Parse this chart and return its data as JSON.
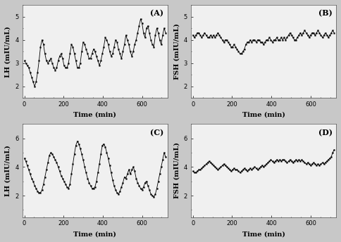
{
  "panels": [
    {
      "label": "(A)",
      "ylabel": "LH (mIU/mL)",
      "xlabel": "Time (min)",
      "ylim": [
        1.5,
        5.5
      ],
      "yticks": [
        2,
        3,
        4,
        5
      ],
      "xlim": [
        -10,
        730
      ],
      "xticks": [
        0,
        200,
        400,
        600
      ],
      "data_x": [
        0,
        7.5,
        15,
        22.5,
        30,
        37.5,
        45,
        52.5,
        60,
        67.5,
        75,
        82.5,
        90,
        97.5,
        105,
        112.5,
        120,
        127.5,
        135,
        142.5,
        150,
        157.5,
        165,
        172.5,
        180,
        187.5,
        195,
        202.5,
        210,
        217.5,
        225,
        232.5,
        240,
        247.5,
        255,
        262.5,
        270,
        277.5,
        285,
        292.5,
        300,
        307.5,
        315,
        322.5,
        330,
        337.5,
        345,
        352.5,
        360,
        367.5,
        375,
        382.5,
        390,
        397.5,
        405,
        412.5,
        420,
        427.5,
        435,
        442.5,
        450,
        457.5,
        465,
        472.5,
        480,
        487.5,
        495,
        502.5,
        510,
        517.5,
        525,
        532.5,
        540,
        547.5,
        555,
        562.5,
        570,
        577.5,
        585,
        592.5,
        600,
        607.5,
        615,
        622.5,
        630,
        637.5,
        645,
        652.5,
        660,
        667.5,
        675,
        682.5,
        690,
        697.5,
        705,
        712.5,
        720
      ],
      "data_y": [
        3.1,
        3.0,
        2.9,
        2.8,
        2.6,
        2.4,
        2.2,
        2.0,
        2.2,
        2.6,
        3.1,
        3.7,
        4.0,
        3.8,
        3.4,
        3.1,
        3.0,
        3.1,
        3.2,
        3.0,
        2.8,
        2.7,
        2.8,
        3.1,
        3.3,
        3.4,
        3.2,
        2.9,
        2.8,
        2.8,
        3.0,
        3.4,
        3.8,
        3.7,
        3.4,
        3.1,
        2.8,
        2.8,
        3.0,
        3.5,
        3.9,
        3.8,
        3.6,
        3.4,
        3.2,
        3.2,
        3.4,
        3.6,
        3.5,
        3.3,
        3.1,
        2.9,
        3.1,
        3.4,
        3.7,
        4.1,
        4.0,
        3.8,
        3.5,
        3.3,
        3.4,
        3.7,
        4.0,
        3.9,
        3.6,
        3.4,
        3.2,
        3.5,
        3.8,
        4.2,
        4.0,
        3.8,
        3.5,
        3.3,
        3.5,
        3.8,
        4.0,
        4.3,
        4.6,
        4.9,
        4.7,
        4.3,
        4.1,
        4.5,
        4.6,
        4.3,
        4.0,
        3.8,
        3.7,
        4.2,
        4.5,
        4.3,
        4.0,
        3.8,
        4.2,
        4.5,
        4.3
      ]
    },
    {
      "label": "(B)",
      "ylabel": "FSH (mIU/mL)",
      "xlabel": "Time (min)",
      "ylim": [
        1.5,
        5.5
      ],
      "yticks": [
        2,
        3,
        4,
        5
      ],
      "xlim": [
        -10,
        730
      ],
      "xticks": [
        0,
        200,
        400,
        600
      ],
      "data_x": [
        0,
        7.5,
        15,
        22.5,
        30,
        37.5,
        45,
        52.5,
        60,
        67.5,
        75,
        82.5,
        90,
        97.5,
        105,
        112.5,
        120,
        127.5,
        135,
        142.5,
        150,
        157.5,
        165,
        172.5,
        180,
        187.5,
        195,
        202.5,
        210,
        217.5,
        225,
        232.5,
        240,
        247.5,
        255,
        262.5,
        270,
        277.5,
        285,
        292.5,
        300,
        307.5,
        315,
        322.5,
        330,
        337.5,
        345,
        352.5,
        360,
        367.5,
        375,
        382.5,
        390,
        397.5,
        405,
        412.5,
        420,
        427.5,
        435,
        442.5,
        450,
        457.5,
        465,
        472.5,
        480,
        487.5,
        495,
        502.5,
        510,
        517.5,
        525,
        532.5,
        540,
        547.5,
        555,
        562.5,
        570,
        577.5,
        585,
        592.5,
        600,
        607.5,
        615,
        622.5,
        630,
        637.5,
        645,
        652.5,
        660,
        667.5,
        675,
        682.5,
        690,
        697.5,
        705,
        712.5,
        720
      ],
      "data_y": [
        4.2,
        4.1,
        4.2,
        4.3,
        4.3,
        4.2,
        4.1,
        4.2,
        4.3,
        4.2,
        4.1,
        4.1,
        4.2,
        4.1,
        4.2,
        4.1,
        4.2,
        4.3,
        4.2,
        4.1,
        4.0,
        3.9,
        4.0,
        4.0,
        3.9,
        3.8,
        3.7,
        3.7,
        3.8,
        3.7,
        3.6,
        3.5,
        3.4,
        3.4,
        3.5,
        3.6,
        3.8,
        3.9,
        3.9,
        4.0,
        3.9,
        4.0,
        4.0,
        3.9,
        4.0,
        4.0,
        3.9,
        3.9,
        3.8,
        3.9,
        4.0,
        4.0,
        4.1,
        4.0,
        3.9,
        4.0,
        4.0,
        4.1,
        4.0,
        4.0,
        4.1,
        4.0,
        4.1,
        4.0,
        4.1,
        4.2,
        4.3,
        4.2,
        4.1,
        4.0,
        4.0,
        4.1,
        4.2,
        4.3,
        4.2,
        4.3,
        4.4,
        4.3,
        4.2,
        4.1,
        4.2,
        4.3,
        4.3,
        4.2,
        4.3,
        4.4,
        4.3,
        4.2,
        4.1,
        4.2,
        4.3,
        4.2,
        4.1,
        4.2,
        4.3,
        4.4,
        4.3
      ]
    },
    {
      "label": "(C)",
      "ylabel": "LH (mIU/mL)",
      "xlabel": "Time (min)",
      "ylim": [
        0.5,
        7
      ],
      "yticks": [
        2,
        4,
        6
      ],
      "xlim": [
        -10,
        730
      ],
      "xticks": [
        0,
        200,
        400,
        600
      ],
      "data_x": [
        0,
        7.5,
        15,
        22.5,
        30,
        37.5,
        45,
        52.5,
        60,
        67.5,
        75,
        82.5,
        90,
        97.5,
        105,
        112.5,
        120,
        127.5,
        135,
        142.5,
        150,
        157.5,
        165,
        172.5,
        180,
        187.5,
        195,
        202.5,
        210,
        217.5,
        225,
        232.5,
        240,
        247.5,
        255,
        262.5,
        270,
        277.5,
        285,
        292.5,
        300,
        307.5,
        315,
        322.5,
        330,
        337.5,
        345,
        352.5,
        360,
        367.5,
        375,
        382.5,
        390,
        397.5,
        405,
        412.5,
        420,
        427.5,
        435,
        442.5,
        450,
        457.5,
        465,
        472.5,
        480,
        487.5,
        495,
        502.5,
        510,
        517.5,
        525,
        532.5,
        540,
        547.5,
        555,
        562.5,
        570,
        577.5,
        585,
        592.5,
        600,
        607.5,
        615,
        622.5,
        630,
        637.5,
        645,
        652.5,
        660,
        667.5,
        675,
        682.5,
        690,
        697.5,
        705,
        712.5,
        720
      ],
      "data_y": [
        4.6,
        4.4,
        4.1,
        3.8,
        3.5,
        3.2,
        3.0,
        2.7,
        2.5,
        2.3,
        2.2,
        2.2,
        2.4,
        2.8,
        3.3,
        3.8,
        4.3,
        4.8,
        5.0,
        4.9,
        4.7,
        4.5,
        4.3,
        4.0,
        3.7,
        3.4,
        3.2,
        3.0,
        2.8,
        2.6,
        2.5,
        2.8,
        3.5,
        4.2,
        4.9,
        5.5,
        5.8,
        5.6,
        5.3,
        4.9,
        4.5,
        4.0,
        3.6,
        3.2,
        2.9,
        2.7,
        2.5,
        2.5,
        2.6,
        3.0,
        3.6,
        4.2,
        4.9,
        5.5,
        5.6,
        5.4,
        5.0,
        4.6,
        4.1,
        3.6,
        3.1,
        2.7,
        2.4,
        2.2,
        2.1,
        2.3,
        2.6,
        2.9,
        3.3,
        3.2,
        3.5,
        3.8,
        3.5,
        3.8,
        4.0,
        3.7,
        3.2,
        2.9,
        2.7,
        2.5,
        2.4,
        2.6,
        2.9,
        3.0,
        2.7,
        2.4,
        2.1,
        2.0,
        1.9,
        2.1,
        2.5,
        3.0,
        3.5,
        4.0,
        4.5,
        5.0,
        4.7
      ]
    },
    {
      "label": "(D)",
      "ylabel": "FSH (mIU/mL)",
      "xlabel": "Time (min)",
      "ylim": [
        0.5,
        7
      ],
      "yticks": [
        2,
        4,
        6
      ],
      "xlim": [
        -10,
        730
      ],
      "xticks": [
        0,
        200,
        400,
        600
      ],
      "data_x": [
        0,
        7.5,
        15,
        22.5,
        30,
        37.5,
        45,
        52.5,
        60,
        67.5,
        75,
        82.5,
        90,
        97.5,
        105,
        112.5,
        120,
        127.5,
        135,
        142.5,
        150,
        157.5,
        165,
        172.5,
        180,
        187.5,
        195,
        202.5,
        210,
        217.5,
        225,
        232.5,
        240,
        247.5,
        255,
        262.5,
        270,
        277.5,
        285,
        292.5,
        300,
        307.5,
        315,
        322.5,
        330,
        337.5,
        345,
        352.5,
        360,
        367.5,
        375,
        382.5,
        390,
        397.5,
        405,
        412.5,
        420,
        427.5,
        435,
        442.5,
        450,
        457.5,
        465,
        472.5,
        480,
        487.5,
        495,
        502.5,
        510,
        517.5,
        525,
        532.5,
        540,
        547.5,
        555,
        562.5,
        570,
        577.5,
        585,
        592.5,
        600,
        607.5,
        615,
        622.5,
        630,
        637.5,
        645,
        652.5,
        660,
        667.5,
        675,
        682.5,
        690,
        697.5,
        705,
        712.5,
        720
      ],
      "data_y": [
        3.7,
        3.6,
        3.6,
        3.7,
        3.8,
        3.8,
        3.9,
        4.0,
        4.1,
        4.2,
        4.3,
        4.4,
        4.3,
        4.2,
        4.1,
        4.0,
        3.9,
        3.8,
        3.9,
        4.0,
        4.1,
        4.2,
        4.1,
        4.0,
        3.9,
        3.8,
        3.7,
        3.8,
        3.9,
        3.8,
        3.8,
        3.7,
        3.6,
        3.7,
        3.8,
        3.9,
        3.8,
        3.7,
        3.8,
        3.9,
        3.8,
        3.9,
        4.0,
        3.9,
        3.8,
        3.9,
        4.0,
        4.1,
        4.0,
        4.1,
        4.2,
        4.3,
        4.4,
        4.5,
        4.4,
        4.3,
        4.4,
        4.5,
        4.4,
        4.5,
        4.4,
        4.5,
        4.5,
        4.4,
        4.3,
        4.4,
        4.5,
        4.4,
        4.3,
        4.4,
        4.5,
        4.4,
        4.5,
        4.4,
        4.5,
        4.4,
        4.3,
        4.2,
        4.3,
        4.2,
        4.1,
        4.2,
        4.3,
        4.2,
        4.1,
        4.2,
        4.1,
        4.2,
        4.3,
        4.2,
        4.3,
        4.4,
        4.5,
        4.6,
        4.7,
        5.0,
        5.2
      ]
    }
  ],
  "line_color": "#000000",
  "marker": "s",
  "markersize": 1.2,
  "linewidth": 0.6,
  "plot_bg_color": "#f0f0f0",
  "fig_bg_color": "#c8c8c8",
  "font_family": "serif",
  "label_fontsize": 7,
  "tick_fontsize": 6,
  "panel_label_fontsize": 8
}
